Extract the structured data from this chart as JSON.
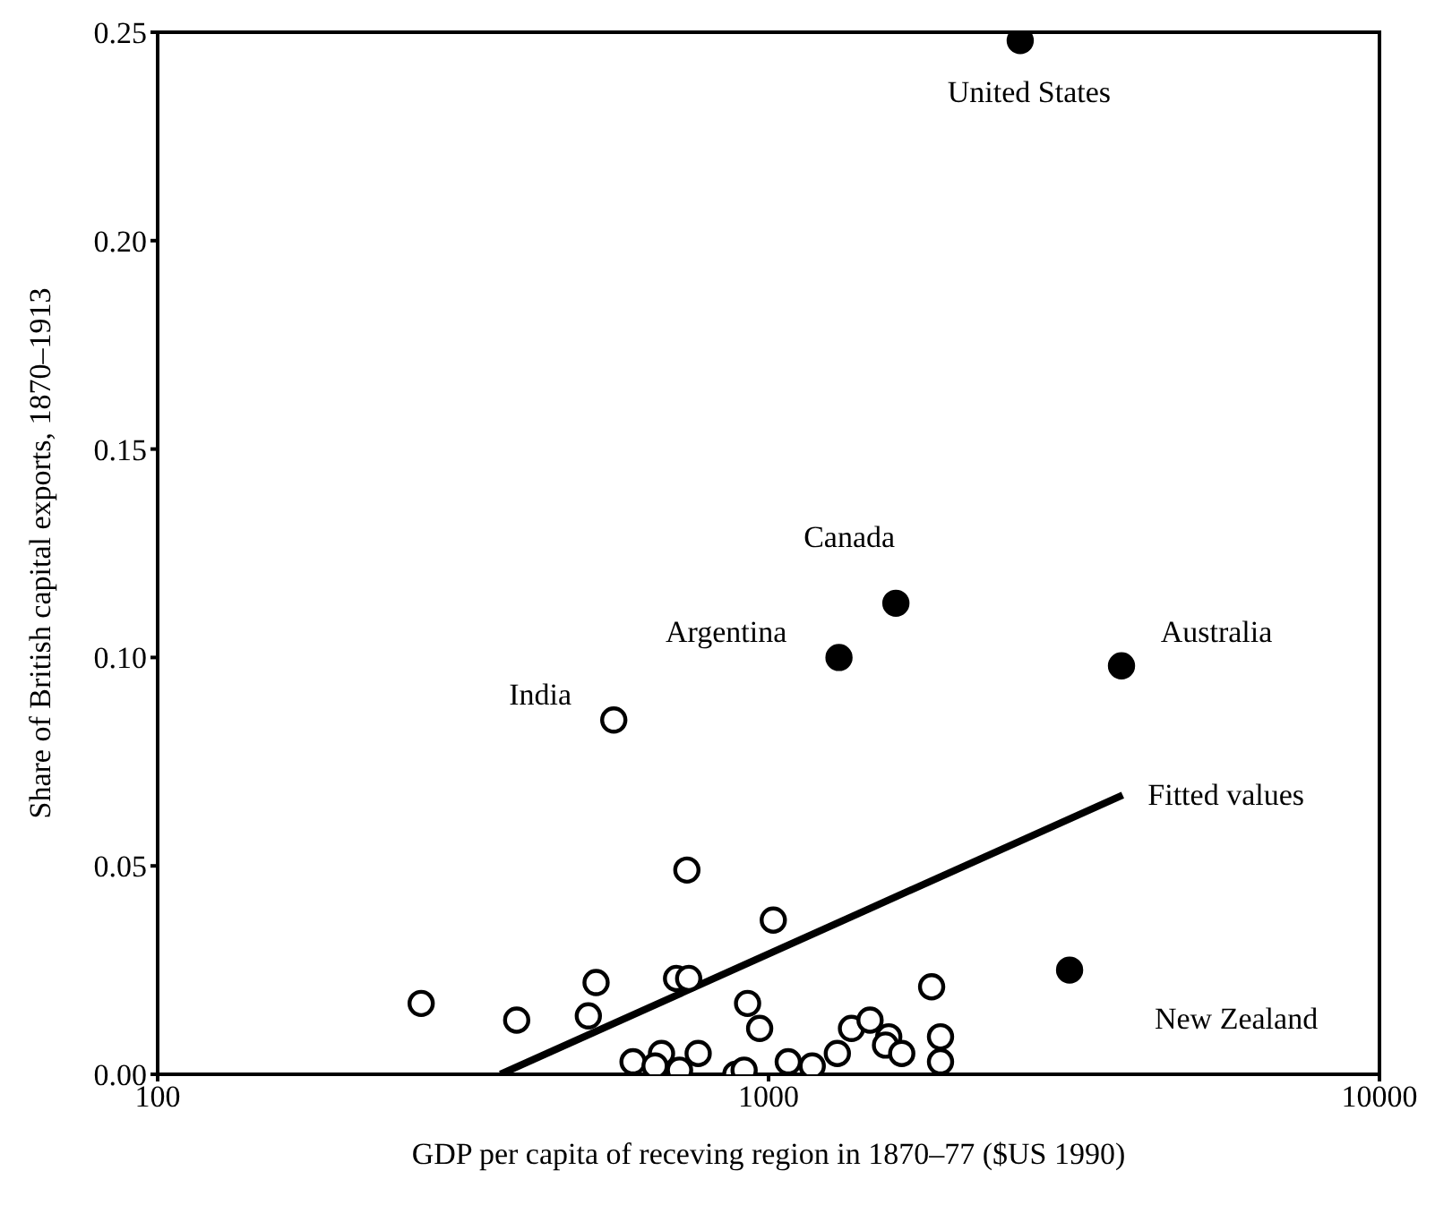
{
  "chart_data": {
    "type": "scatter",
    "xlabel": "GDP per capita of receving region in 1870–77 ($US 1990)",
    "ylabel": "Share of British capital exports, 1870–1913",
    "log": "x",
    "xlim": [
      100,
      10000
    ],
    "xticks": [
      100,
      1000,
      10000
    ],
    "ylim": [
      0,
      0.25
    ],
    "yticks": [
      {
        "value": 0,
        "label": "0.00"
      },
      {
        "value": 0.05,
        "label": "0.05"
      },
      {
        "value": 0.1,
        "label": "0.10"
      },
      {
        "value": 0.15,
        "label": "0.15"
      },
      {
        "value": 0.2,
        "label": "0.20"
      },
      {
        "value": 0.25,
        "label": "0.25"
      }
    ],
    "grid": false,
    "legend": false,
    "marker": "circle",
    "series": [
      {
        "color": "#ffffff",
        "x": [
          270,
          387,
          522,
          507,
          707,
          740,
          735,
          1018,
          924,
          967,
          1849,
          1912,
          1912,
          600,
          668,
          652,
          715,
          767,
          884,
          912,
          1077,
          1179,
          1296,
          1367,
          1466,
          1573,
          1554,
          1652,
          558
        ],
        "values": [
          0.017,
          0.013,
          0.022,
          0.014,
          0.023,
          0.023,
          0.049,
          0.037,
          0.017,
          0.011,
          0.021,
          0.009,
          0.003,
          0.003,
          0.005,
          0.002,
          0.001,
          0.005,
          0.0,
          0.001,
          0.003,
          0.002,
          0.005,
          0.011,
          0.013,
          0.009,
          0.007,
          0.005,
          0.085
        ]
      },
      {
        "color": "#000000",
        "x": [
          1304,
          1616,
          3782,
          2582,
          3110
        ],
        "values": [
          0.1,
          0.113,
          0.098,
          0.248,
          0.025
        ]
      },
      {
        "type": "line",
        "name": "Fitted values",
        "color": "#000000",
        "marker": "none",
        "x": [
          364,
          3799
        ],
        "values": [
          0,
          0.067
        ]
      }
    ],
    "annotations": [
      {
        "text": "United States",
        "x": 2582,
        "y": 0.248
      },
      {
        "text": "Canada",
        "x": 1616,
        "y": 0.113
      },
      {
        "text": "Argentina",
        "x": 1304,
        "y": 0.1
      },
      {
        "text": "India",
        "x": 558,
        "y": 0.085
      },
      {
        "text": "Australia",
        "x": 3782,
        "y": 0.098
      },
      {
        "text": "New Zealand",
        "x": 3110,
        "y": 0.025
      }
    ]
  }
}
